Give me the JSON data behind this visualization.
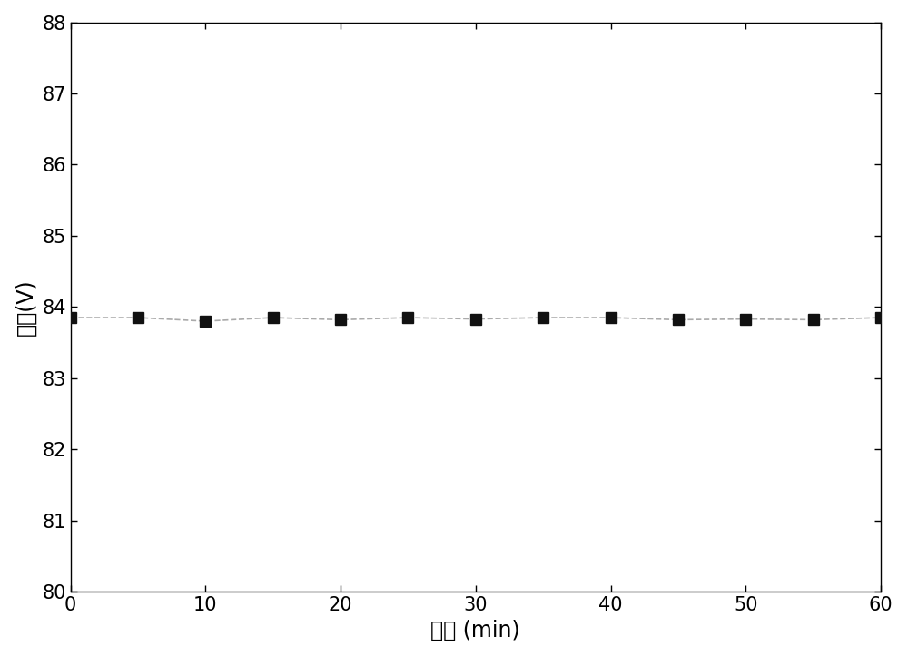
{
  "x": [
    0,
    5,
    10,
    15,
    20,
    25,
    30,
    35,
    40,
    45,
    50,
    55,
    60
  ],
  "y": [
    83.85,
    83.85,
    83.8,
    83.85,
    83.82,
    83.85,
    83.83,
    83.85,
    83.85,
    83.82,
    83.83,
    83.82,
    83.85
  ],
  "xlim": [
    0,
    60
  ],
  "ylim": [
    80,
    88
  ],
  "xticks": [
    0,
    10,
    20,
    30,
    40,
    50,
    60
  ],
  "yticks": [
    80,
    81,
    82,
    83,
    84,
    85,
    86,
    87,
    88
  ],
  "xlabel": "时间 (min)",
  "ylabel": "电压(V)",
  "line_color": "#aaaaaa",
  "marker_color": "#111111",
  "marker": "s",
  "marker_size": 8,
  "line_style": "--",
  "line_width": 1.2,
  "tick_fontsize": 15,
  "label_fontsize": 17,
  "background_color": "#ffffff",
  "figure_bg": "#ffffff",
  "spine_color": "#000000"
}
